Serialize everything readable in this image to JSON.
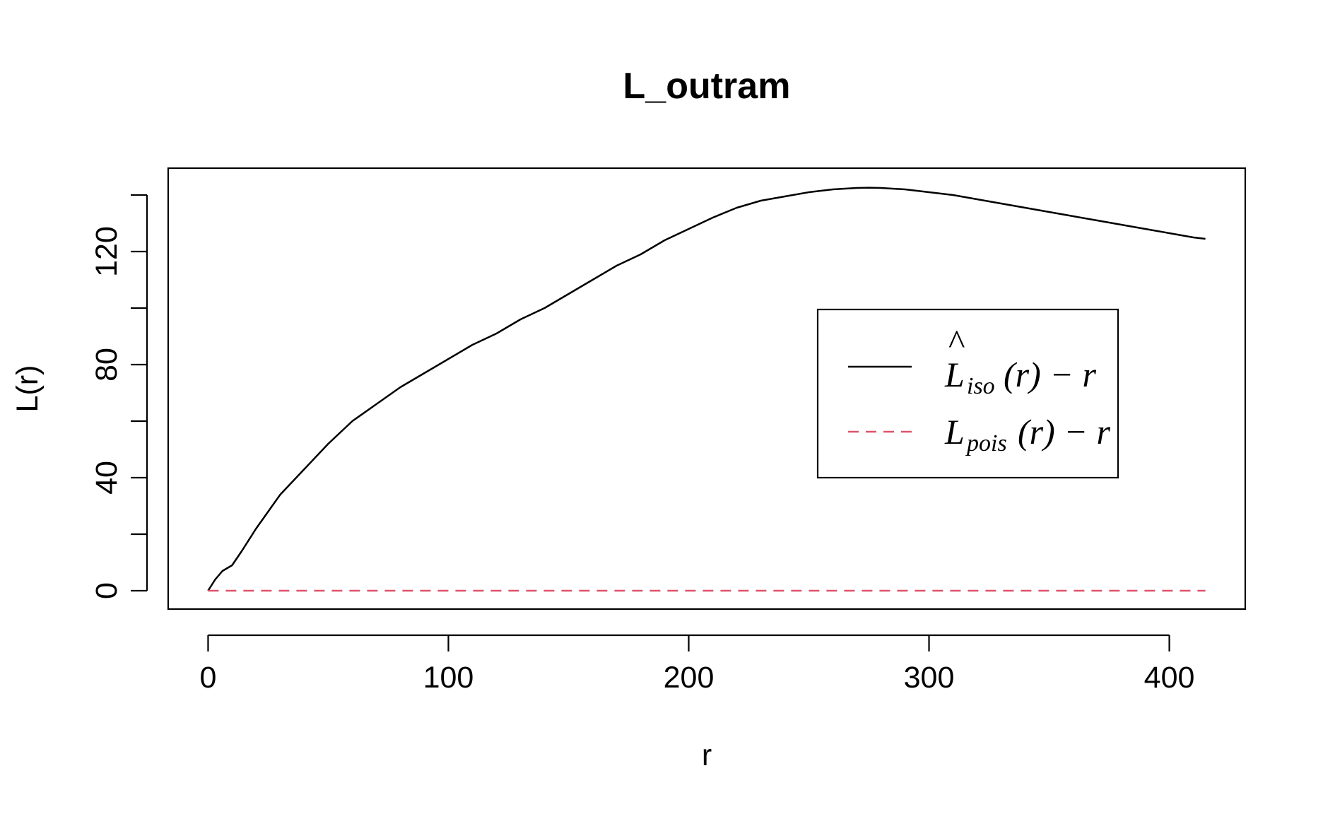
{
  "chart_data": {
    "type": "line",
    "title": "L_outram",
    "xlabel": "r",
    "ylabel": "L(r)",
    "xlim": [
      -16.6,
      431.6
    ],
    "ylim": [
      -6.5,
      149.5
    ],
    "xticks": [
      0,
      100,
      200,
      300,
      400
    ],
    "yticks": [
      0,
      20,
      40,
      60,
      80,
      100,
      120,
      140
    ],
    "ytick_labels": [
      0,
      40,
      80,
      120
    ],
    "grid": false,
    "legend_position": "right",
    "series": [
      {
        "name": "L̂iso(r) − r",
        "legend": {
          "base": "L",
          "hat": "^",
          "sub": "iso",
          "expr": "(r) − r"
        },
        "color": "#000000",
        "dash": "solid",
        "x": [
          0,
          3,
          6,
          10,
          14,
          20,
          30,
          40,
          50,
          60,
          70,
          80,
          90,
          100,
          110,
          120,
          130,
          140,
          150,
          160,
          170,
          180,
          190,
          200,
          210,
          220,
          230,
          240,
          250,
          260,
          270,
          275,
          280,
          290,
          300,
          310,
          320,
          330,
          340,
          350,
          360,
          370,
          380,
          390,
          400,
          410,
          415
        ],
        "y": [
          0,
          4,
          7,
          9,
          14,
          22,
          34,
          43,
          52,
          60,
          66,
          72,
          77,
          82,
          87,
          91,
          96,
          100,
          105,
          110,
          115,
          119,
          124,
          128,
          132,
          135.5,
          138,
          139.5,
          141,
          142,
          142.5,
          142.6,
          142.5,
          142,
          141,
          140,
          138.5,
          137,
          135.5,
          134,
          132.5,
          131,
          129.5,
          128,
          126.5,
          125,
          124.5
        ]
      },
      {
        "name": "Lpois(r) − r",
        "legend": {
          "base": "L",
          "hat": "",
          "sub": "pois",
          "expr": "(r) − r"
        },
        "color": "#DF536B",
        "dash": "dashed",
        "x": [
          0,
          415
        ],
        "y": [
          0,
          0
        ]
      }
    ]
  }
}
